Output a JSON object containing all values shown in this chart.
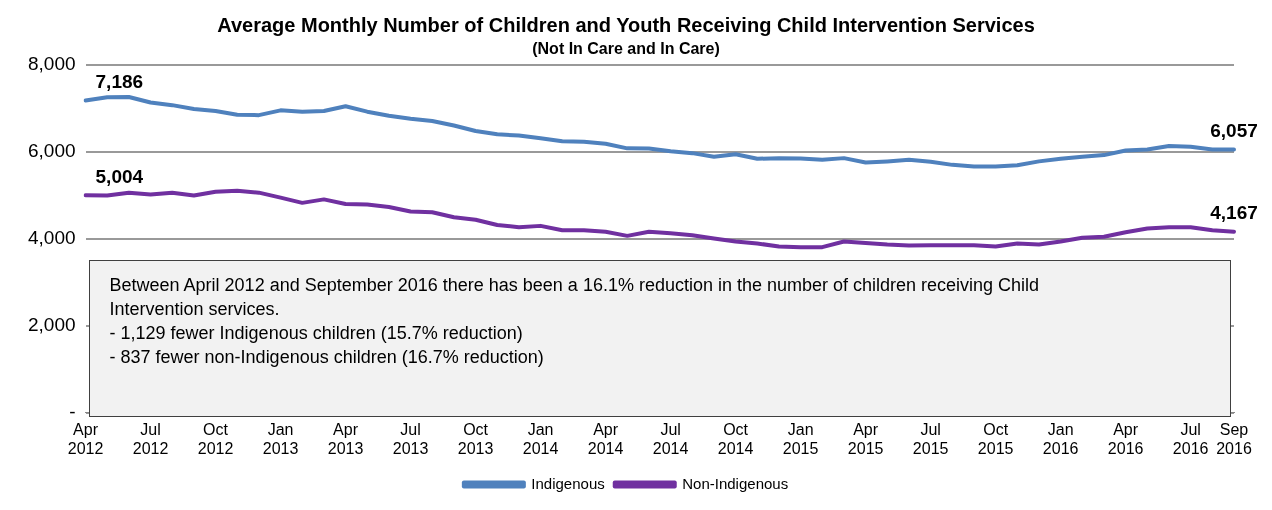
{
  "chart_data": {
    "type": "line",
    "title": "Average Monthly Number of Children and Youth Receiving Child Intervention Services",
    "subtitle": "(Not In Care and In Care)",
    "categories": [
      "Apr 2012",
      null,
      null,
      "Jul 2012",
      null,
      null,
      "Oct 2012",
      null,
      null,
      "Jan 2013",
      null,
      null,
      "Apr 2013",
      null,
      null,
      "Jul 2013",
      null,
      null,
      "Oct 2013",
      null,
      null,
      "Jan 2014",
      null,
      null,
      "Apr 2014",
      null,
      null,
      "Jul 2014",
      null,
      null,
      "Oct 2014",
      null,
      null,
      "Jan 2015",
      null,
      null,
      "Apr 2015",
      null,
      null,
      "Jul 2015",
      null,
      null,
      "Oct 2015",
      null,
      null,
      "Jan 2016",
      null,
      null,
      "Apr 2016",
      null,
      null,
      "Jul 2016",
      null,
      "Sep 2016"
    ],
    "series": [
      {
        "name": "Indigenous",
        "color": "#4f81bd",
        "values": [
          7186,
          7260,
          7268,
          7140,
          7080,
          6990,
          6945,
          6860,
          6850,
          6960,
          6930,
          6945,
          7055,
          6930,
          6835,
          6765,
          6715,
          6610,
          6485,
          6410,
          6380,
          6320,
          6250,
          6235,
          6190,
          6085,
          6080,
          6020,
          5975,
          5890,
          5950,
          5845,
          5860,
          5850,
          5825,
          5860,
          5760,
          5785,
          5820,
          5775,
          5705,
          5670,
          5670,
          5695,
          5785,
          5845,
          5890,
          5930,
          6035,
          6060,
          6140,
          6120,
          6060,
          6057
        ],
        "value_labels": [
          "7,186",
          null,
          null,
          null,
          null,
          null,
          null,
          null,
          null,
          null,
          null,
          null,
          null,
          null,
          null,
          null,
          null,
          null,
          null,
          null,
          null,
          null,
          null,
          null,
          null,
          null,
          null,
          null,
          null,
          null,
          null,
          null,
          null,
          null,
          null,
          null,
          null,
          null,
          null,
          null,
          null,
          null,
          null,
          null,
          null,
          null,
          null,
          null,
          null,
          null,
          null,
          null,
          null,
          "6,057"
        ]
      },
      {
        "name": "Non-Indigenous",
        "color": "#7030a0",
        "values": [
          5004,
          5000,
          5065,
          5020,
          5065,
          5000,
          5085,
          5110,
          5065,
          4950,
          4830,
          4910,
          4805,
          4790,
          4735,
          4630,
          4615,
          4500,
          4440,
          4320,
          4270,
          4300,
          4200,
          4200,
          4165,
          4070,
          4165,
          4130,
          4085,
          4010,
          3940,
          3895,
          3825,
          3810,
          3810,
          3940,
          3905,
          3870,
          3850,
          3855,
          3855,
          3855,
          3825,
          3895,
          3870,
          3940,
          4025,
          4050,
          4155,
          4240,
          4270,
          4270,
          4200,
          4167
        ],
        "value_labels": [
          "5,004",
          null,
          null,
          null,
          null,
          null,
          null,
          null,
          null,
          null,
          null,
          null,
          null,
          null,
          null,
          null,
          null,
          null,
          null,
          null,
          null,
          null,
          null,
          null,
          null,
          null,
          null,
          null,
          null,
          null,
          null,
          null,
          null,
          null,
          null,
          null,
          null,
          null,
          null,
          null,
          null,
          null,
          null,
          null,
          null,
          null,
          null,
          null,
          null,
          null,
          null,
          null,
          null,
          "4,167"
        ]
      }
    ],
    "ylim": [
      0,
      8000
    ],
    "yticks": [
      {
        "value": 0,
        "label": "-"
      },
      {
        "value": 2000,
        "label": "2,000"
      },
      {
        "value": 4000,
        "label": "4,000"
      },
      {
        "value": 6000,
        "label": "6,000"
      },
      {
        "value": 8000,
        "label": "8,000"
      }
    ],
    "grid": "y",
    "legend": "bottom",
    "marker": "none",
    "line_style": "solid",
    "annotations": [
      "Between April 2012 and September 2016 there has been a 16.1% reduction in the number of children receiving Child Intervention services.",
      "-  1,129 fewer Indigenous children (15.7%  reduction)",
      "-  837 fewer non-Indigenous children (16.7% reduction)"
    ]
  }
}
